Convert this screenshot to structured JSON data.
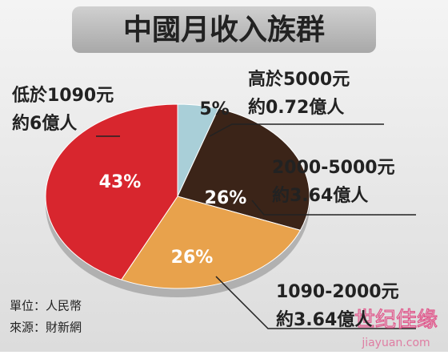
{
  "chart_data": {
    "type": "pie",
    "title": "中國月收入族群",
    "categories": [
      "高於5000元",
      "2000-5000元",
      "1090-2000元",
      "低於1090元"
    ],
    "sublabels": [
      "約0.72億人",
      "約3.64億人",
      "約3.64億人",
      "約6億人"
    ],
    "values": [
      5,
      26,
      26,
      43
    ],
    "value_labels": [
      "5%",
      "26%",
      "26%",
      "43%"
    ],
    "colors": [
      "#a9cfd8",
      "#3b2418",
      "#e8a24c",
      "#d8262e"
    ],
    "notes": [
      "單位：人民幣",
      "來源：財新網"
    ],
    "watermark": [
      "世纪佳缘",
      "jiayuan.com"
    ]
  }
}
